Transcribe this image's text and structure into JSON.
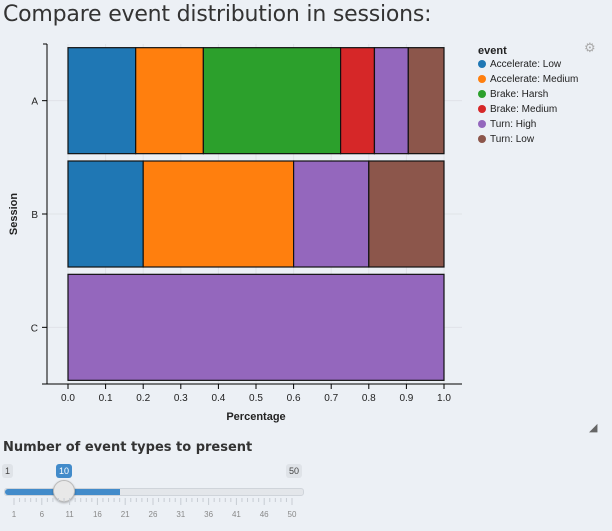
{
  "page_title": "Compare event distribution in sessions:",
  "chart_data": {
    "type": "bar",
    "orientation": "horizontal",
    "stacked": true,
    "categories": [
      "A",
      "B",
      "C"
    ],
    "xlabel": "Percentage",
    "ylabel": "Session",
    "xlim": [
      0,
      1
    ],
    "xticks": [
      "0.0",
      "0.1",
      "0.2",
      "0.3",
      "0.4",
      "0.5",
      "0.6",
      "0.7",
      "0.8",
      "0.9",
      "1.0"
    ],
    "legend_title": "event",
    "legend_position": "right",
    "grid": true,
    "series": [
      {
        "name": "Accelerate: Low",
        "color": "#1f77b4",
        "values": [
          0.18,
          0.2,
          0.0
        ]
      },
      {
        "name": "Accelerate: Medium",
        "color": "#ff7f0e",
        "values": [
          0.18,
          0.4,
          0.0
        ]
      },
      {
        "name": "Brake: Harsh",
        "color": "#2ca02c",
        "values": [
          0.365,
          0.0,
          0.0
        ]
      },
      {
        "name": "Brake: Medium",
        "color": "#d62728",
        "values": [
          0.09,
          0.0,
          0.0
        ]
      },
      {
        "name": "Turn: High",
        "color": "#9467bd",
        "values": [
          0.09,
          0.2,
          1.0
        ]
      },
      {
        "name": "Turn: Low",
        "color": "#8c564b",
        "values": [
          0.095,
          0.2,
          0.0
        ]
      }
    ]
  },
  "slider": {
    "label": "Number of event types to present",
    "min": 1,
    "max": 50,
    "value": 10,
    "min_label": "1",
    "max_label": "50",
    "value_label": "10",
    "grid_labels": [
      "1",
      "6",
      "11",
      "16",
      "21",
      "26",
      "31",
      "36",
      "41",
      "46",
      "50"
    ],
    "accent": "#428bca"
  },
  "icons": {
    "settings": "gear-icon",
    "resize": "resize-handle-icon"
  }
}
